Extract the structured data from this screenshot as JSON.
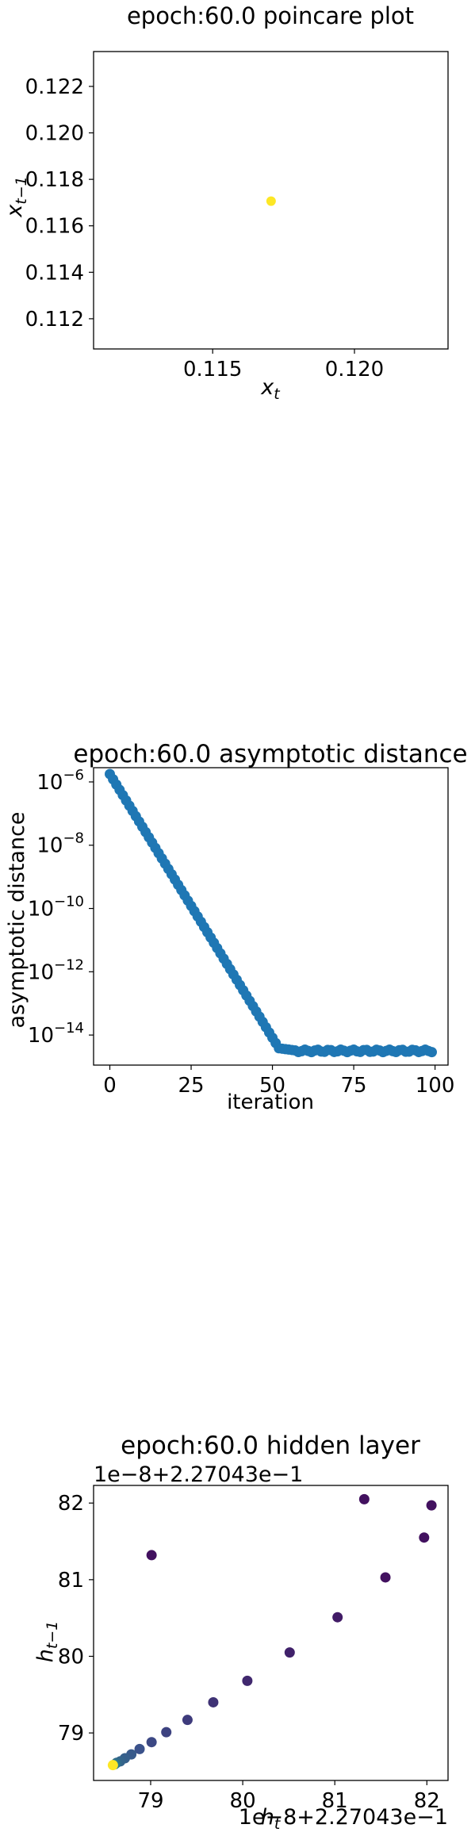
{
  "chart_data": [
    {
      "type": "scatter",
      "title": "epoch:60.0 poincare plot",
      "xlabel": "x_t",
      "ylabel": "x_{t-1}",
      "xlim": [
        0.1108,
        0.1233
      ],
      "ylim": [
        0.1107,
        0.1235
      ],
      "xticks": [
        0.115,
        0.12
      ],
      "xtick_labels": [
        "0.115",
        "0.120"
      ],
      "yticks": [
        0.112,
        0.114,
        0.116,
        0.118,
        0.12,
        0.122
      ],
      "ytick_labels": [
        "0.112",
        "0.114",
        "0.116",
        "0.118",
        "0.120",
        "0.122"
      ],
      "grid": false,
      "series": [
        {
          "color": "#fde725",
          "points": [
            [
              0.11706,
              0.11706
            ]
          ]
        }
      ]
    },
    {
      "type": "scatter",
      "title": "epoch:60.0 asymptotic distance",
      "xlabel": "iteration",
      "ylabel": "asymptotic distance",
      "xlim": [
        -5,
        104
      ],
      "ylim_log10": [
        -14.95,
        -5.55
      ],
      "yscale": "log",
      "xticks": [
        0,
        25,
        50,
        75,
        100
      ],
      "xtick_labels": [
        "0",
        "25",
        "50",
        "75",
        "100"
      ],
      "yticks_log10": [
        -14,
        -12,
        -10,
        -8,
        -6
      ],
      "grid": false,
      "series": [
        {
          "color": "#1f77b4",
          "x_start": 0,
          "x_end": 99,
          "log10_start": -5.75,
          "slope_per_iter": -0.1667,
          "knee_x": 52,
          "floor_log10": -14.5,
          "floor_from_x": 58
        }
      ]
    },
    {
      "type": "scatter",
      "title": "epoch:60.0 hidden layer",
      "xlabel": "h_t",
      "ylabel": "h_{t-1}",
      "offset_text_top": "1e−8+2.27043e−1",
      "offset_text_bottom": "1e−8+2.27043e−1",
      "xlim": [
        78.38,
        82.23
      ],
      "ylim": [
        78.38,
        82.23
      ],
      "xticks": [
        79,
        80,
        81,
        82
      ],
      "xtick_labels": [
        "79",
        "80",
        "81",
        "82"
      ],
      "yticks": [
        79,
        80,
        81,
        82
      ],
      "ytick_labels": [
        "79",
        "80",
        "81",
        "82"
      ],
      "grid": false,
      "colormap": "viridis",
      "points": [
        [
          79.01,
          81.32,
          0.05
        ],
        [
          81.32,
          82.05,
          0.05
        ],
        [
          82.05,
          81.97,
          0.05
        ],
        [
          81.97,
          81.55,
          0.05
        ],
        [
          81.55,
          81.03,
          0.05
        ],
        [
          81.03,
          80.51,
          0.08
        ],
        [
          80.51,
          80.05,
          0.1
        ],
        [
          80.05,
          79.68,
          0.12
        ],
        [
          79.68,
          79.4,
          0.15
        ],
        [
          79.4,
          79.17,
          0.18
        ],
        [
          79.17,
          79.01,
          0.2
        ],
        [
          79.01,
          78.88,
          0.22
        ],
        [
          78.88,
          78.79,
          0.25
        ],
        [
          78.79,
          78.72,
          0.28
        ],
        [
          78.72,
          78.67,
          0.3
        ],
        [
          78.67,
          78.63,
          0.32
        ],
        [
          78.63,
          78.61,
          0.35
        ],
        [
          78.61,
          78.59,
          0.4
        ],
        [
          78.59,
          78.58,
          1.0
        ]
      ]
    }
  ]
}
